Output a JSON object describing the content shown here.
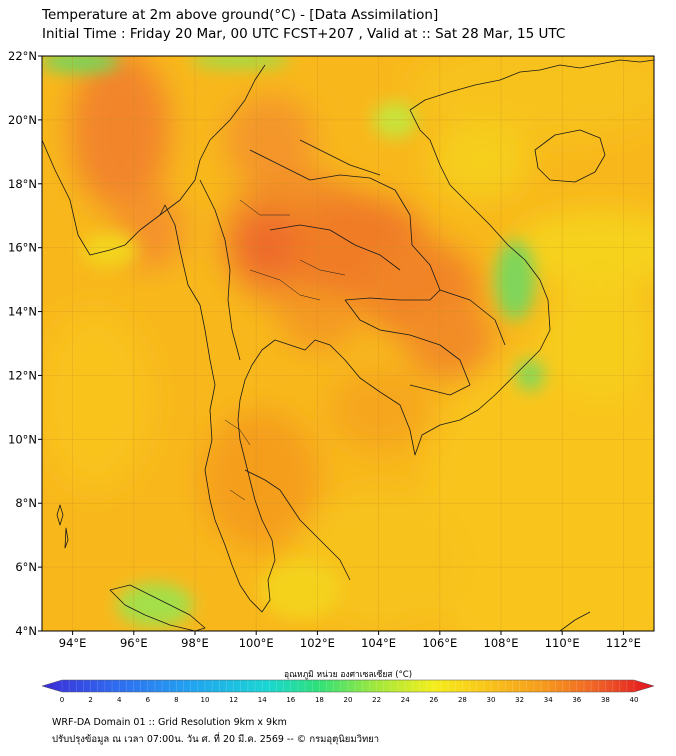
{
  "title_line1": "Temperature at 2m above ground(°C) - [Data Assimilation]",
  "title_line2": "Initial Time : Friday 20 Mar, 00 UTC FCST+207 , Valid at :: Sat 28 Mar, 15 UTC",
  "lon_ticks": [
    "94°E",
    "96°E",
    "98°E",
    "100°E",
    "102°E",
    "104°E",
    "106°E",
    "108°E",
    "110°E",
    "112°E"
  ],
  "lat_ticks": [
    "22°N",
    "20°N",
    "18°N",
    "16°N",
    "14°N",
    "12°N",
    "10°N",
    "8°N",
    "6°N",
    "4°N"
  ],
  "colorbar": {
    "label": "อุณหภูมิ หน่วย องศาเซลเซียส (°C)",
    "min": 0,
    "max": 40,
    "ticks": [
      "0",
      "2",
      "4",
      "6",
      "8",
      "10",
      "12",
      "14",
      "16",
      "18",
      "20",
      "22",
      "24",
      "26",
      "28",
      "30",
      "32",
      "34",
      "36",
      "38",
      "40"
    ]
  },
  "footer_line1": "WRF-DA Domain 01 :: Grid Resolution 9km x 9km",
  "footer_line2": "ปรับปรุงข้อมูล ณ เวลา 07:00น. วัน ศ. ที่ 20 มี.ค. 2569 -- © กรมอุตุนิยมวิทยา",
  "colors": {
    "base": "#f8b81c",
    "warm": "#f59a1e",
    "hot": "#ee6a2a",
    "cool": "#f6dd1c",
    "green": "#74d65c",
    "border": "#1a1a1a"
  }
}
